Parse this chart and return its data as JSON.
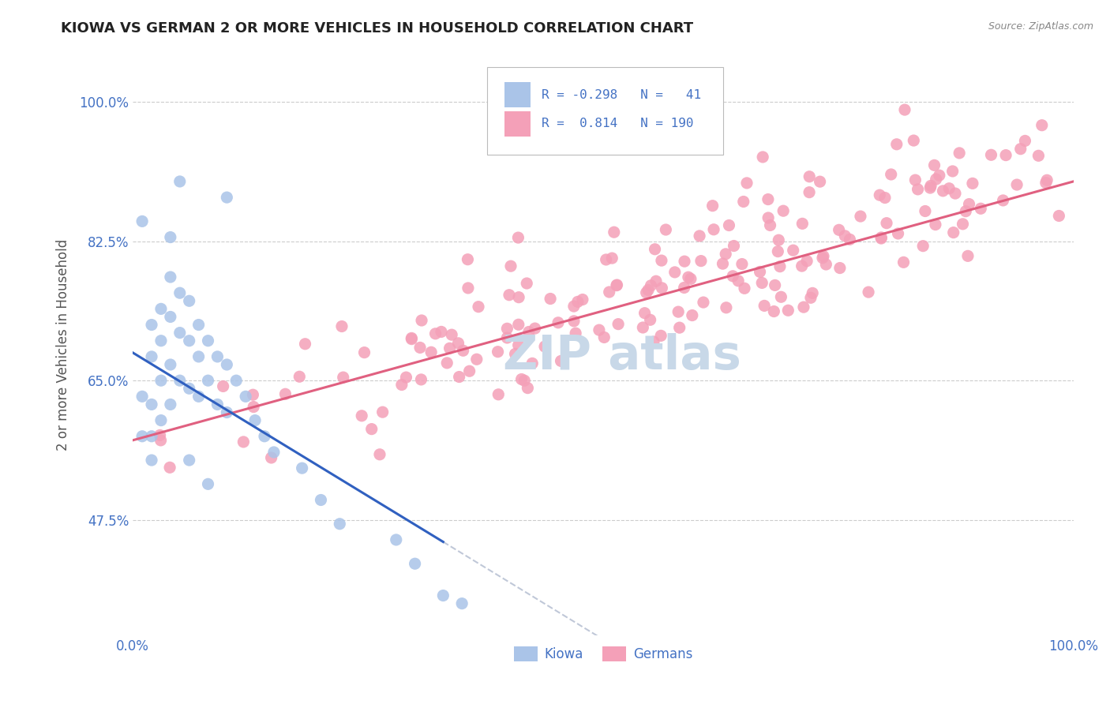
{
  "title": "KIOWA VS GERMAN 2 OR MORE VEHICLES IN HOUSEHOLD CORRELATION CHART",
  "source_text": "Source: ZipAtlas.com",
  "ylabel": "2 or more Vehicles in Household",
  "kiowa_color": "#aac4e8",
  "german_color": "#f4a0b8",
  "kiowa_line_color": "#3060c0",
  "german_line_color": "#e06080",
  "trendline_ext_color": "#c0c8d8",
  "R_kiowa": -0.298,
  "N_kiowa": 41,
  "R_german": 0.814,
  "N_german": 190,
  "background_color": "#ffffff",
  "watermark_color": "#c8d8e8",
  "stat_text_color": "#4472c4",
  "x_min": 0.0,
  "x_max": 1.0,
  "y_min": 0.33,
  "y_max": 1.06,
  "y_ticks": [
    0.475,
    0.65,
    0.825,
    1.0
  ],
  "y_tick_labels": [
    "47.5%",
    "65.0%",
    "82.5%",
    "100.0%"
  ]
}
